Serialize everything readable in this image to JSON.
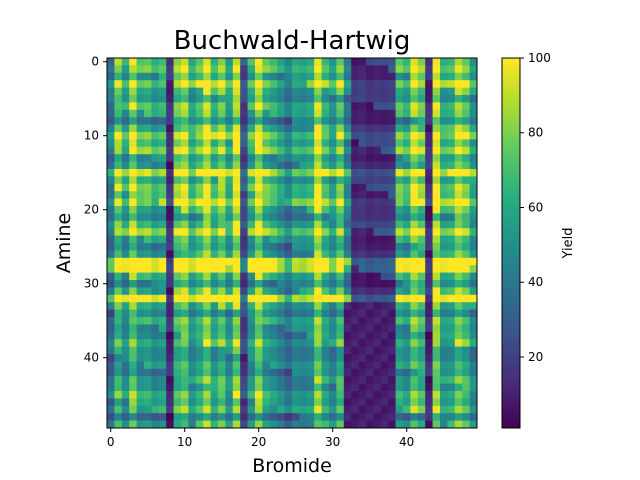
{
  "chart_data": {
    "type": "heatmap",
    "title": "Buchwald-Hartwig",
    "xlabel": "Bromide",
    "ylabel": "Amine",
    "colorbar_label": "Yield",
    "colormap": "viridis",
    "rows": 50,
    "cols": 50,
    "xticks": [
      "0",
      "10",
      "20",
      "30",
      "40"
    ],
    "yticks": [
      "0",
      "10",
      "20",
      "30",
      "40"
    ],
    "colorbar_ticks": [
      "20",
      "40",
      "60",
      "80",
      "100"
    ],
    "vmin": 1,
    "vmax": 100,
    "grid": false,
    "row_factors": [
      62,
      66,
      52,
      75,
      56,
      48,
      62,
      56,
      41,
      58,
      75,
      60,
      72,
      48,
      52,
      88,
      56,
      68,
      62,
      78,
      56,
      45,
      58,
      75,
      52,
      45,
      52,
      100,
      95,
      55,
      42,
      58,
      100,
      56,
      42,
      56,
      48,
      48,
      58,
      45,
      42,
      48,
      42,
      52,
      48,
      58,
      50,
      58,
      35,
      52
    ],
    "col_factors": [
      38,
      72,
      52,
      82,
      58,
      62,
      52,
      58,
      12,
      72,
      82,
      55,
      68,
      88,
      62,
      78,
      55,
      88,
      22,
      58,
      88,
      62,
      56,
      48,
      38,
      52,
      50,
      55,
      88,
      62,
      50,
      72,
      42,
      12,
      15,
      12,
      15,
      15,
      18,
      62,
      55,
      82,
      70,
      12,
      88,
      58,
      62,
      82,
      72,
      52
    ],
    "dark_block": {
      "row_start": 33,
      "row_end": 49,
      "col_start": 32,
      "col_end": 38,
      "value": 6
    }
  }
}
